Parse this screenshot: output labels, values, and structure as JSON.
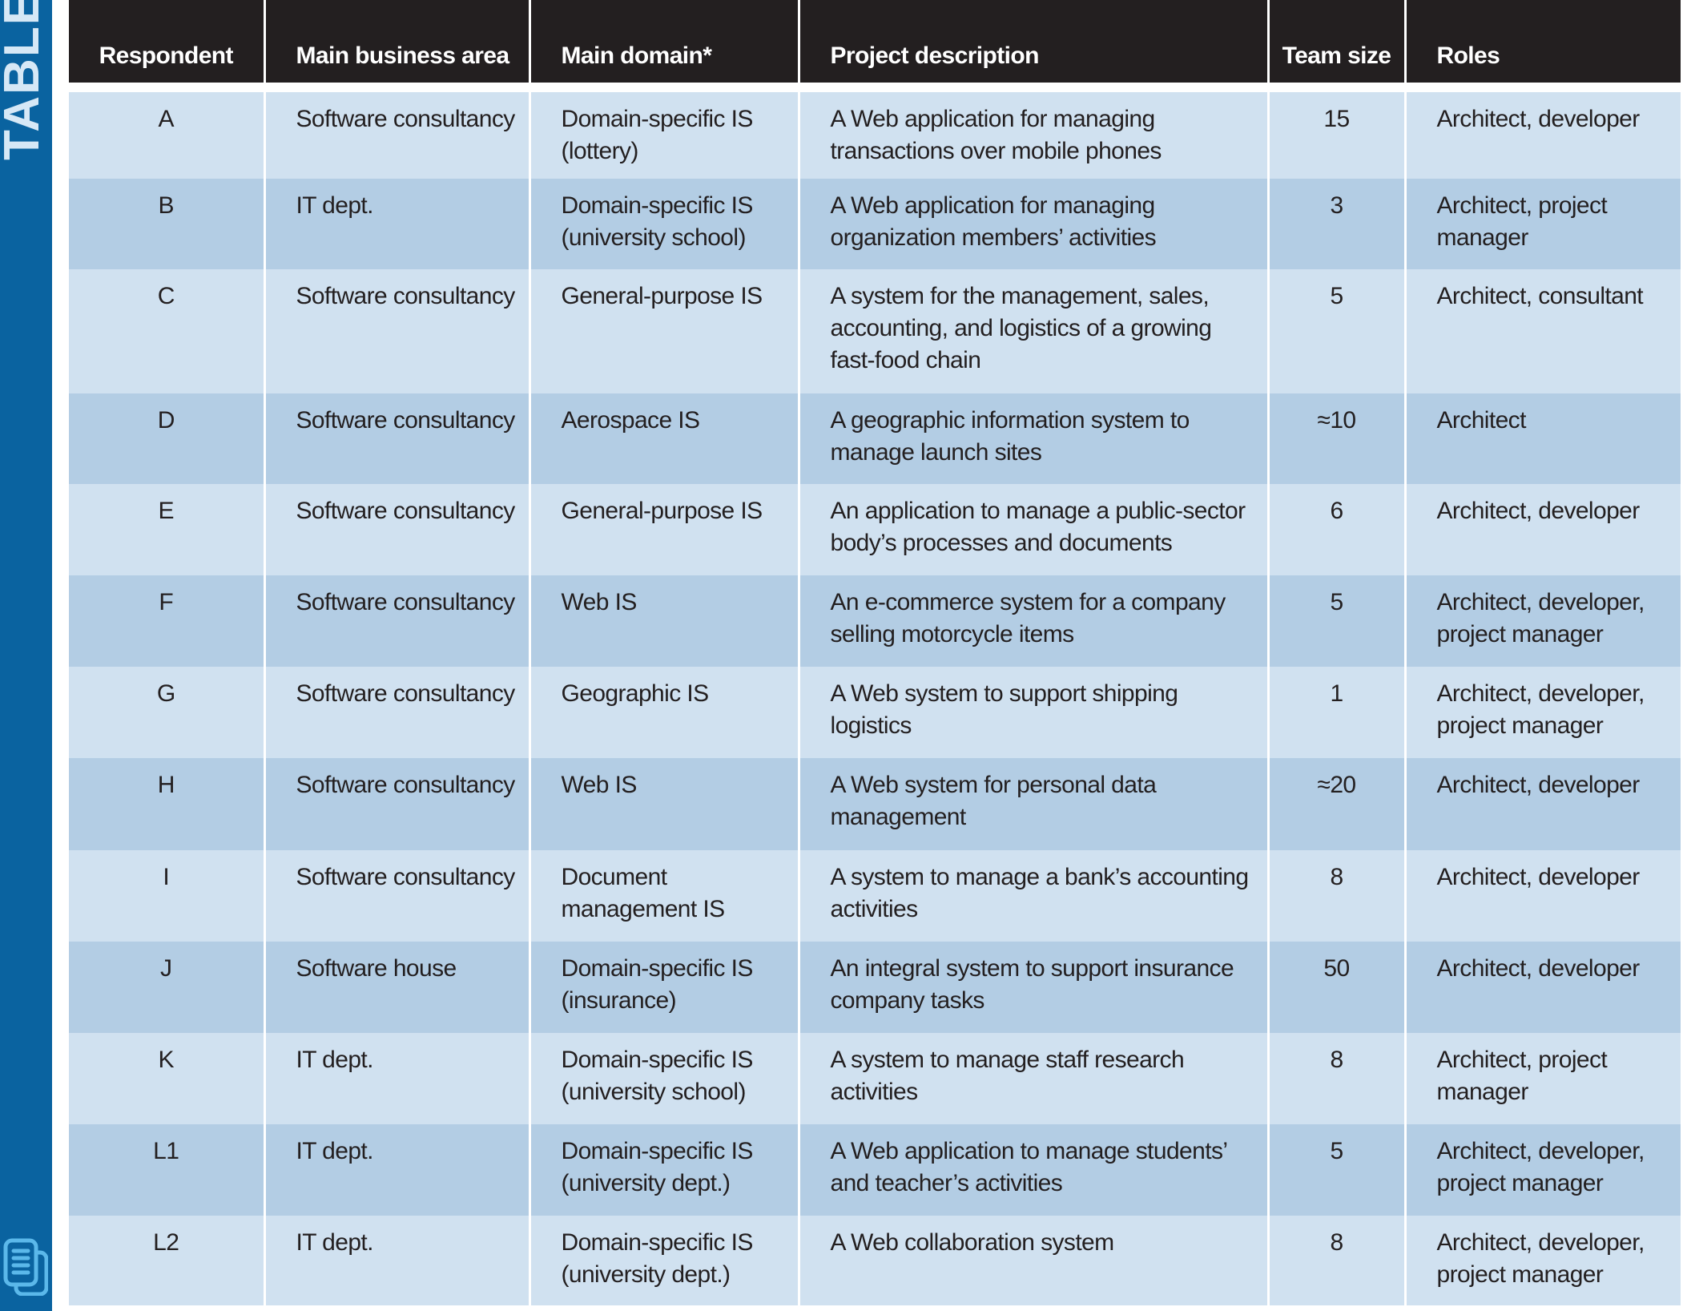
{
  "sidebar": {
    "title": "TABLE",
    "icon": "document-stack-icon",
    "color": "#0a63a0"
  },
  "colors": {
    "header_bg": "#231f20",
    "row_light": "#d0e1f0",
    "row_dark": "#b3cde4"
  },
  "table": {
    "headers": [
      "Respondent",
      "Main business area",
      "Main domain*",
      "Project description",
      "Team size",
      "Roles"
    ],
    "rows": [
      [
        "A",
        "Software consultancy",
        "Domain-specific IS (lottery)",
        "A Web application for managing transactions over mobile phones",
        "15",
        "Architect, developer"
      ],
      [
        "B",
        "IT dept.",
        "Domain-specific IS (university school)",
        "A Web application for managing organization members’ activities",
        "3",
        "Architect, project manager"
      ],
      [
        "C",
        "Software consultancy",
        "General-purpose IS",
        "A system for the management, sales, accounting, and logistics of a growing fast-food chain",
        "5",
        "Architect, consultant"
      ],
      [
        "D",
        "Software consultancy",
        "Aerospace IS",
        "A geographic information system to manage launch sites",
        "≈10",
        "Architect"
      ],
      [
        "E",
        "Software consultancy",
        "General-purpose IS",
        "An application to manage a public-sector body’s processes and documents",
        "6",
        "Architect, developer"
      ],
      [
        "F",
        "Software consultancy",
        "Web IS",
        "An e-commerce system for a company selling motorcycle items",
        "5",
        "Architect, developer, project manager"
      ],
      [
        "G",
        "Software consultancy",
        "Geographic IS",
        "A Web system to support shipping logistics",
        "1",
        "Architect, developer, project manager"
      ],
      [
        "H",
        "Software consultancy",
        "Web IS",
        "A Web system for personal data management",
        "≈20",
        "Architect, developer"
      ],
      [
        "I",
        "Software consultancy",
        "Document management IS",
        "A system to manage a bank’s accounting activities",
        "8",
        "Architect, developer"
      ],
      [
        "J",
        "Software house",
        "Domain-specific IS (insurance)",
        "An integral system to support insurance company tasks",
        "50",
        "Architect, developer"
      ],
      [
        "K",
        "IT dept.",
        "Domain-specific IS (university school)",
        "A system to manage staff research activities",
        "8",
        "Architect, project manager"
      ],
      [
        "L1",
        "IT dept.",
        "Domain-specific IS (university dept.)",
        "A Web application to manage students’ and teacher’s activities",
        "5",
        "Architect, developer, project manager"
      ],
      [
        "L2",
        "IT dept.",
        "Domain-specific IS (university dept.)",
        "A Web collaboration system",
        "8",
        "Architect, developer, project manager"
      ]
    ]
  }
}
